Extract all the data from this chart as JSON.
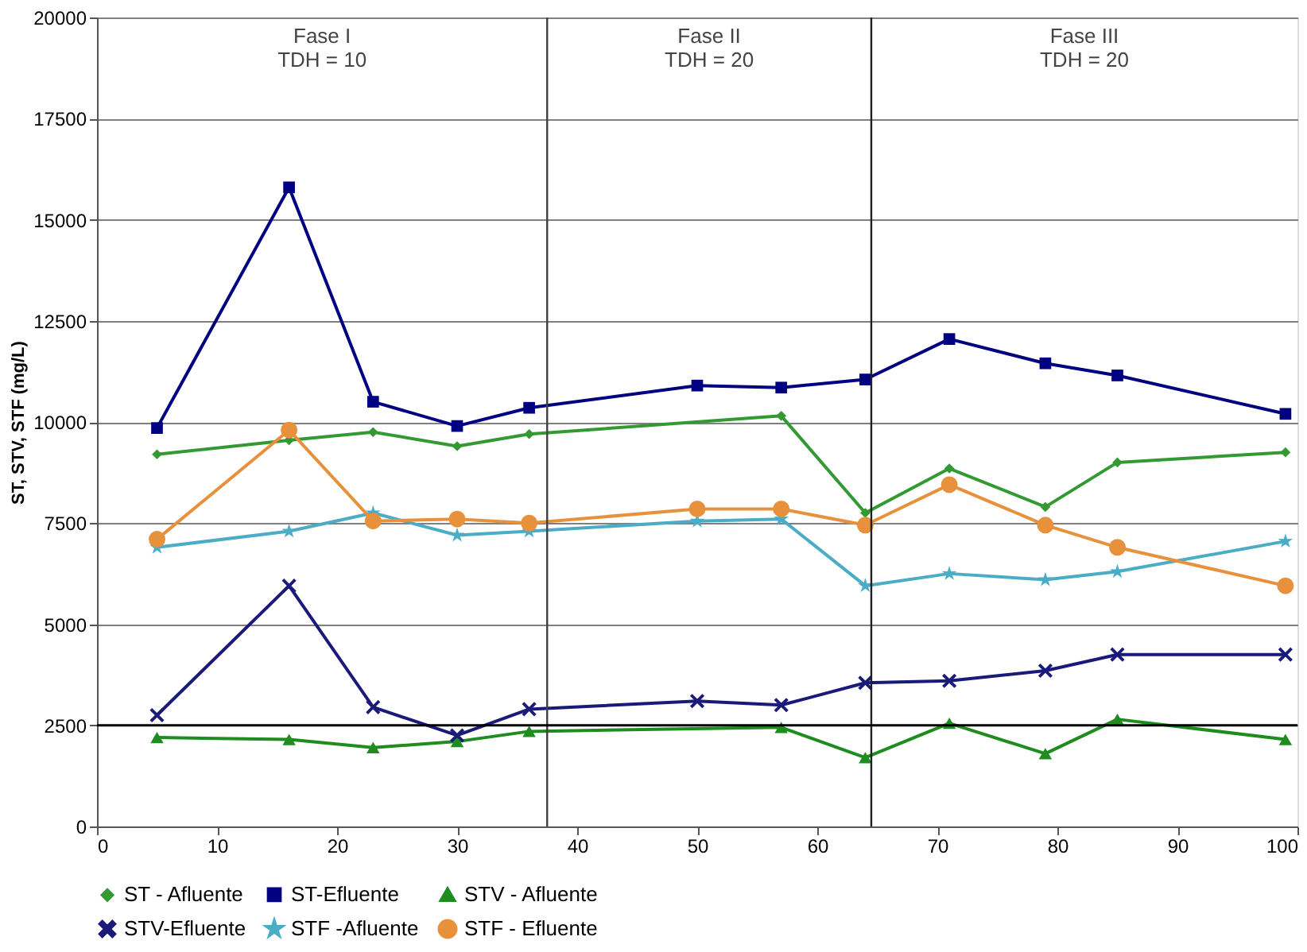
{
  "chart_data": {
    "type": "line",
    "ylabel": "ST, STV, STF  (mg/L)",
    "xlim": [
      0,
      100
    ],
    "xticks": [
      0,
      10,
      20,
      30,
      40,
      50,
      60,
      70,
      80,
      90,
      100
    ],
    "ylim": [
      0,
      20000
    ],
    "yticks": [
      0,
      2500,
      5000,
      7500,
      10000,
      12500,
      15000,
      17500,
      20000
    ],
    "grid": "y",
    "legend": "bottom",
    "series": [
      {
        "name": "ST - Afluente",
        "color": "#339933",
        "marker": "diamond",
        "x": [
          5,
          16,
          23,
          30,
          36,
          57,
          64,
          71,
          79,
          85,
          99
        ],
        "values": [
          9200,
          9550,
          9750,
          9400,
          9700,
          10150,
          7750,
          8850,
          7900,
          9000,
          9250
        ]
      },
      {
        "name": "ST-Efluente",
        "color": "#000080",
        "marker": "square",
        "x": [
          5,
          16,
          23,
          30,
          36,
          50,
          57,
          64,
          71,
          79,
          85,
          99
        ],
        "values": [
          9850,
          15800,
          10500,
          9900,
          10350,
          10900,
          10850,
          11050,
          12050,
          11450,
          11150,
          10200
        ]
      },
      {
        "name": "STV - Afluente",
        "color": "#1e8c1e",
        "marker": "triangle",
        "x": [
          5,
          16,
          23,
          30,
          36,
          57,
          64,
          71,
          79,
          85,
          99
        ],
        "values": [
          2200,
          2150,
          1950,
          2100,
          2350,
          2450,
          1700,
          2550,
          1800,
          2650,
          2150
        ]
      },
      {
        "name": "STV-Efluente",
        "color": "#1a1a7a",
        "marker": "cross",
        "x": [
          5,
          16,
          23,
          30,
          36,
          50,
          57,
          64,
          71,
          79,
          85,
          99
        ],
        "values": [
          2750,
          5950,
          2950,
          2250,
          2900,
          3100,
          3000,
          3550,
          3600,
          3850,
          4250,
          4250
        ]
      },
      {
        "name": "STF -Afluente",
        "color": "#4bacc6",
        "marker": "star",
        "x": [
          5,
          16,
          23,
          30,
          36,
          50,
          57,
          64,
          71,
          79,
          85,
          99
        ],
        "values": [
          6900,
          7300,
          7750,
          7200,
          7300,
          7550,
          7600,
          5950,
          6250,
          6100,
          6300,
          7050
        ]
      },
      {
        "name": "STF - Efluente",
        "color": "#e8913c",
        "marker": "circle",
        "x": [
          5,
          16,
          23,
          30,
          36,
          50,
          57,
          64,
          71,
          79,
          85,
          99
        ],
        "values": [
          7100,
          9800,
          7550,
          7600,
          7500,
          7850,
          7850,
          7450,
          8450,
          7450,
          6900,
          5950
        ]
      }
    ],
    "ref_lines": [
      {
        "axis": "x",
        "value": 37.5,
        "color": "#404040"
      },
      {
        "axis": "x",
        "value": 64.5,
        "color": "#202020"
      },
      {
        "axis": "y",
        "value": 2500,
        "color": "#000000"
      }
    ],
    "annotations": [
      "Fase I\nTDH = 10",
      "Fase II\nTDH = 20",
      "Fase III\nTDH = 20"
    ]
  }
}
